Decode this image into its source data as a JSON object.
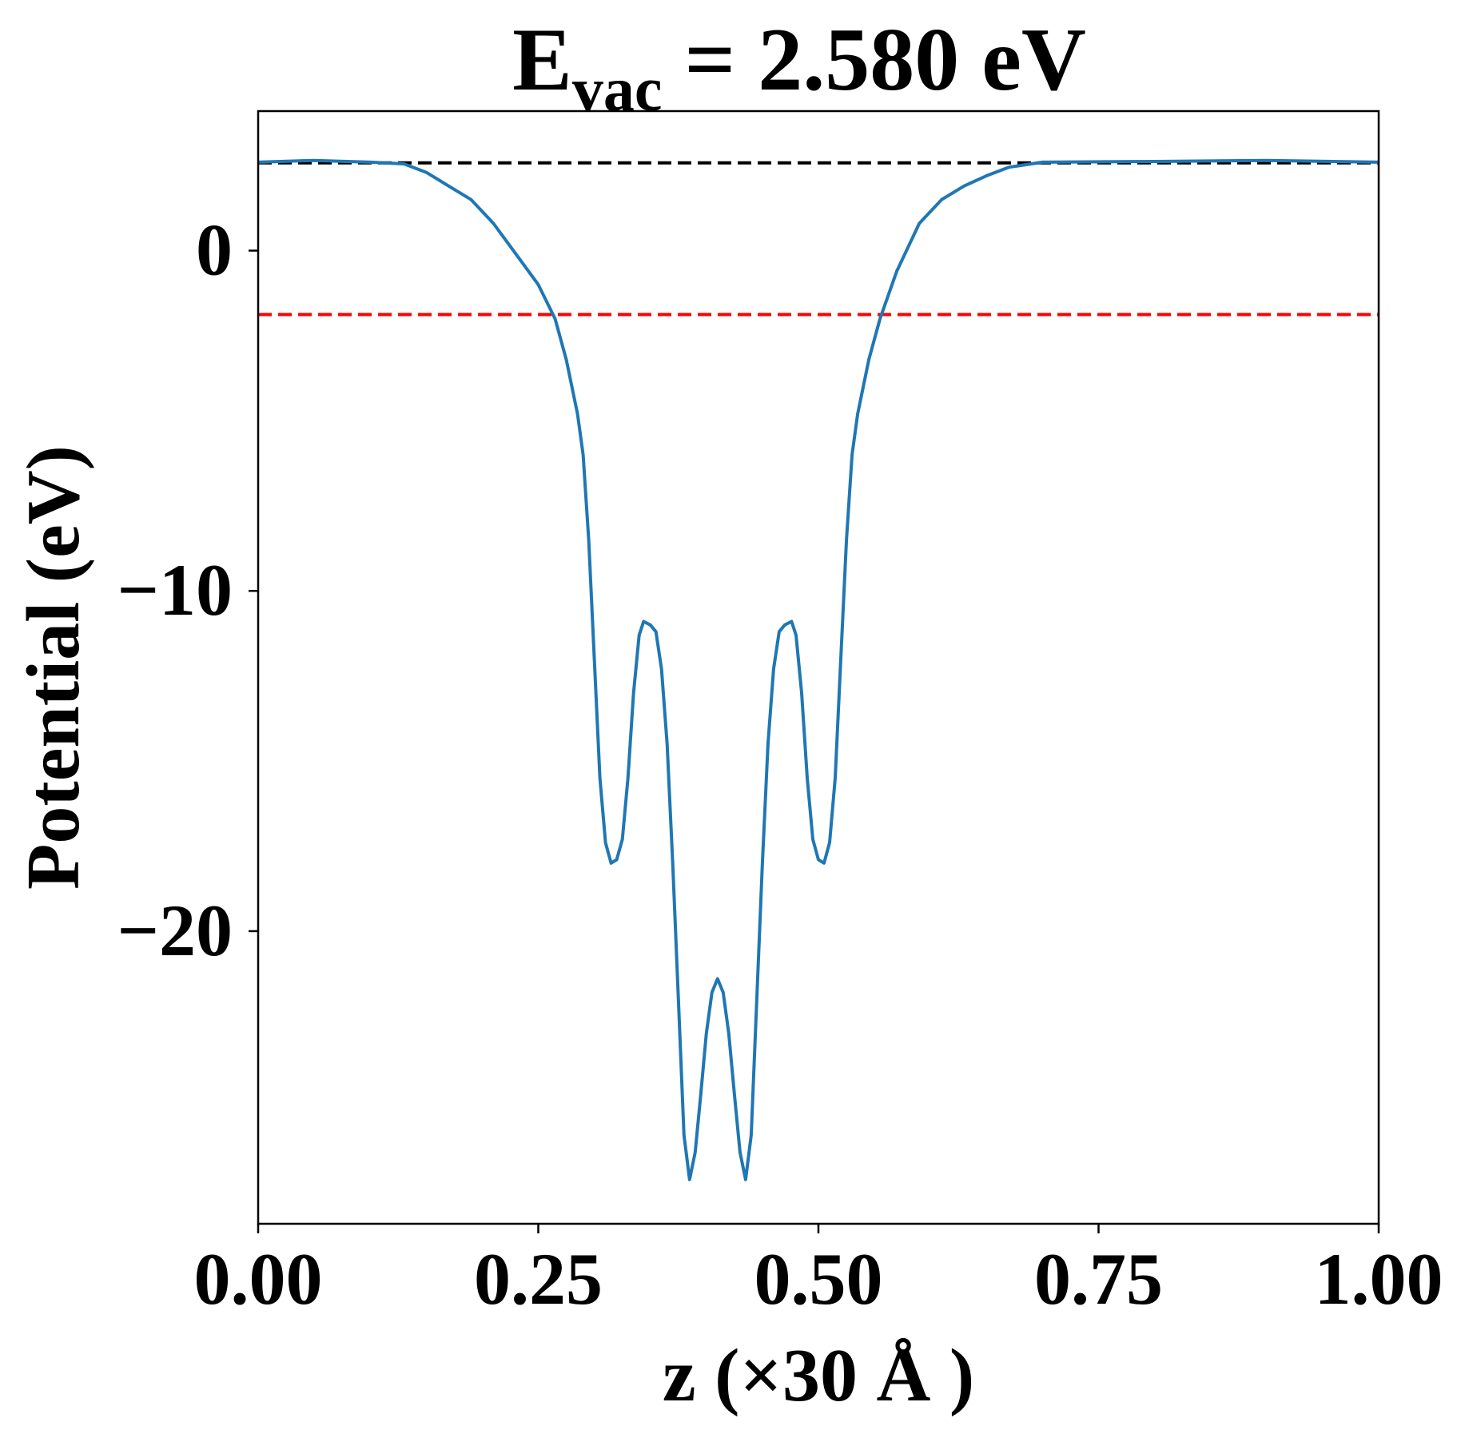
{
  "chart_data": {
    "type": "line",
    "title_main": "E",
    "title_sub": "vac",
    "title_rest": " = 2.580 eV",
    "xlabel": "z (×30 Å )",
    "ylabel": "Potential (eV)",
    "xlim": [
      0,
      1
    ],
    "ylim": [
      -28.6,
      4.1
    ],
    "xticks": [
      0,
      0.25,
      0.5,
      0.75,
      1.0
    ],
    "xtick_labels": [
      "0.00",
      "0.25",
      "0.50",
      "0.75",
      "1.00"
    ],
    "yticks": [
      0,
      -10,
      -20
    ],
    "ytick_labels": [
      "0",
      "−10",
      "−20"
    ],
    "grid": false,
    "hlines": [
      {
        "name": "vacuum-level",
        "y": 2.58,
        "color": "#000000",
        "style": "dashed"
      },
      {
        "name": "fermi-level",
        "y": -1.88,
        "color": "#ff0000",
        "style": "dashed"
      }
    ],
    "series": [
      {
        "name": "potential",
        "color": "#1f77b4",
        "x": [
          0,
          0.05,
          0.1,
          0.13,
          0.15,
          0.17,
          0.19,
          0.21,
          0.23,
          0.25,
          0.265,
          0.275,
          0.285,
          0.29,
          0.295,
          0.3,
          0.305,
          0.31,
          0.315,
          0.32,
          0.325,
          0.33,
          0.335,
          0.34,
          0.344,
          0.35,
          0.355,
          0.36,
          0.365,
          0.37,
          0.375,
          0.38,
          0.385,
          0.39,
          0.395,
          0.4,
          0.405,
          0.41,
          0.415,
          0.42,
          0.425,
          0.43,
          0.435,
          0.44,
          0.445,
          0.45,
          0.455,
          0.46,
          0.465,
          0.47,
          0.476,
          0.48,
          0.485,
          0.49,
          0.495,
          0.5,
          0.505,
          0.51,
          0.515,
          0.52,
          0.525,
          0.53,
          0.535,
          0.545,
          0.555,
          0.57,
          0.59,
          0.61,
          0.63,
          0.65,
          0.67,
          0.7,
          0.8,
          0.9,
          1.0
        ],
        "y": [
          2.6,
          2.65,
          2.6,
          2.55,
          2.3,
          1.9,
          1.5,
          0.8,
          -0.1,
          -1.0,
          -2.0,
          -3.2,
          -4.8,
          -6.0,
          -8.5,
          -12,
          -15.5,
          -17.4,
          -18.0,
          -17.9,
          -17.3,
          -15.5,
          -13,
          -11.3,
          -10.9,
          -11.0,
          -11.2,
          -12.3,
          -14.5,
          -18,
          -22,
          -26,
          -27.3,
          -26.5,
          -24.8,
          -23,
          -21.8,
          -21.4,
          -21.8,
          -23,
          -24.8,
          -26.5,
          -27.3,
          -26,
          -22,
          -18,
          -14.5,
          -12.3,
          -11.2,
          -11.0,
          -10.9,
          -11.3,
          -13,
          -15.5,
          -17.3,
          -17.9,
          -18.0,
          -17.4,
          -15.5,
          -12,
          -8.5,
          -6.0,
          -4.8,
          -3.2,
          -2.0,
          -0.6,
          0.8,
          1.5,
          1.9,
          2.2,
          2.45,
          2.6,
          2.62,
          2.65,
          2.6
        ]
      }
    ]
  }
}
